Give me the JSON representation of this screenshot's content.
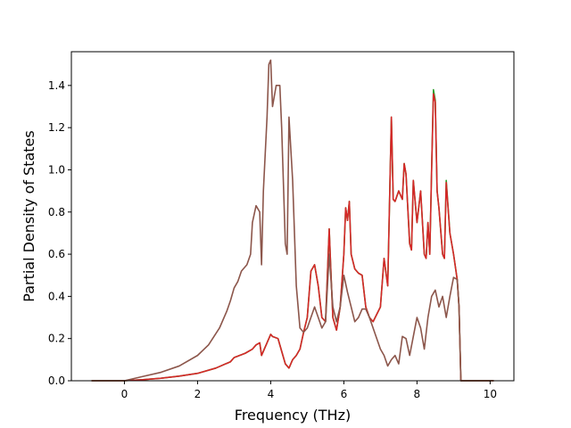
{
  "chart_data": {
    "type": "line",
    "title": "",
    "xlabel": "Frequency (THz)",
    "ylabel": "Partial Density of States",
    "xlim": [
      -1.45,
      10.65
    ],
    "ylim": [
      0,
      1.56
    ],
    "xticks": [
      0,
      2,
      4,
      6,
      8,
      10
    ],
    "yticks": [
      0.0,
      0.2,
      0.4,
      0.6,
      0.8,
      1.0,
      1.2,
      1.4
    ],
    "xtick_labels": [
      "0",
      "2",
      "4",
      "6",
      "8",
      "10"
    ],
    "ytick_labels": [
      "0.0",
      "0.2",
      "0.4",
      "0.6",
      "0.8",
      "1.0",
      "1.2",
      "1.4"
    ],
    "grid": false,
    "legend": "none",
    "series": [
      {
        "color": "#2ca02c",
        "x": [
          -0.9,
          0.0,
          0.5,
          1.0,
          1.5,
          2.0,
          2.5,
          2.9,
          3.0,
          3.3,
          3.5,
          3.6,
          3.7,
          3.75,
          3.9,
          4.0,
          4.05,
          4.2,
          4.3,
          4.4,
          4.5,
          4.6,
          4.7,
          4.8,
          4.9,
          5.0,
          5.1,
          5.2,
          5.3,
          5.4,
          5.5,
          5.6,
          5.65,
          5.7,
          5.8,
          5.9,
          6.0,
          6.05,
          6.1,
          6.15,
          6.2,
          6.3,
          6.4,
          6.5,
          6.6,
          6.7,
          6.8,
          7.0,
          7.1,
          7.2,
          7.3,
          7.35,
          7.4,
          7.5,
          7.6,
          7.65,
          7.7,
          7.8,
          7.85,
          7.9,
          8.0,
          8.1,
          8.2,
          8.25,
          8.3,
          8.35,
          8.4,
          8.45,
          8.5,
          8.55,
          8.6,
          8.7,
          8.75,
          8.8,
          8.9,
          9.0,
          9.1,
          9.15,
          9.2,
          9.25,
          10.1
        ],
        "y": [
          0.0,
          0.0,
          0.005,
          0.012,
          0.022,
          0.035,
          0.06,
          0.09,
          0.11,
          0.13,
          0.15,
          0.17,
          0.18,
          0.12,
          0.18,
          0.22,
          0.21,
          0.2,
          0.14,
          0.08,
          0.06,
          0.1,
          0.12,
          0.15,
          0.23,
          0.3,
          0.52,
          0.55,
          0.45,
          0.3,
          0.28,
          0.72,
          0.5,
          0.3,
          0.24,
          0.35,
          0.6,
          0.82,
          0.76,
          0.85,
          0.6,
          0.53,
          0.51,
          0.5,
          0.35,
          0.3,
          0.28,
          0.35,
          0.58,
          0.45,
          1.25,
          0.86,
          0.85,
          0.9,
          0.86,
          1.03,
          0.98,
          0.65,
          0.62,
          0.95,
          0.75,
          0.9,
          0.6,
          0.58,
          0.75,
          0.6,
          1.0,
          1.38,
          1.33,
          0.9,
          0.82,
          0.6,
          0.58,
          0.95,
          0.7,
          0.6,
          0.48,
          0.35,
          0.0,
          0.0,
          0.0
        ]
      },
      {
        "color": "#d62728",
        "x": [
          -0.9,
          0.0,
          0.5,
          1.0,
          1.5,
          2.0,
          2.5,
          2.9,
          3.0,
          3.3,
          3.5,
          3.6,
          3.7,
          3.75,
          3.9,
          4.0,
          4.05,
          4.2,
          4.3,
          4.4,
          4.5,
          4.6,
          4.7,
          4.8,
          4.9,
          5.0,
          5.1,
          5.2,
          5.3,
          5.4,
          5.5,
          5.6,
          5.65,
          5.7,
          5.8,
          5.9,
          6.0,
          6.05,
          6.1,
          6.15,
          6.2,
          6.3,
          6.4,
          6.5,
          6.6,
          6.7,
          6.8,
          7.0,
          7.1,
          7.2,
          7.3,
          7.35,
          7.4,
          7.5,
          7.6,
          7.65,
          7.7,
          7.8,
          7.85,
          7.9,
          8.0,
          8.1,
          8.2,
          8.25,
          8.3,
          8.35,
          8.4,
          8.45,
          8.5,
          8.55,
          8.6,
          8.7,
          8.75,
          8.8,
          8.9,
          9.0,
          9.1,
          9.15,
          9.2,
          9.25,
          10.1
        ],
        "y": [
          0.0,
          0.0,
          0.005,
          0.012,
          0.022,
          0.035,
          0.06,
          0.09,
          0.11,
          0.13,
          0.15,
          0.17,
          0.18,
          0.12,
          0.18,
          0.22,
          0.21,
          0.2,
          0.14,
          0.08,
          0.06,
          0.1,
          0.12,
          0.15,
          0.23,
          0.3,
          0.52,
          0.55,
          0.45,
          0.3,
          0.28,
          0.72,
          0.5,
          0.3,
          0.24,
          0.35,
          0.6,
          0.82,
          0.76,
          0.85,
          0.6,
          0.53,
          0.51,
          0.5,
          0.35,
          0.3,
          0.28,
          0.35,
          0.58,
          0.45,
          1.25,
          0.86,
          0.85,
          0.9,
          0.86,
          1.03,
          0.98,
          0.65,
          0.62,
          0.95,
          0.75,
          0.9,
          0.6,
          0.58,
          0.75,
          0.6,
          1.0,
          1.36,
          1.32,
          0.9,
          0.82,
          0.6,
          0.58,
          0.94,
          0.7,
          0.6,
          0.48,
          0.35,
          0.0,
          0.0,
          0.0
        ]
      },
      {
        "color": "#8c564b",
        "x": [
          -0.9,
          0.0,
          0.5,
          1.0,
          1.5,
          2.0,
          2.3,
          2.6,
          2.8,
          2.9,
          3.0,
          3.1,
          3.2,
          3.35,
          3.45,
          3.5,
          3.6,
          3.7,
          3.75,
          3.8,
          3.9,
          3.95,
          4.0,
          4.05,
          4.15,
          4.25,
          4.3,
          4.4,
          4.45,
          4.5,
          4.6,
          4.7,
          4.8,
          4.9,
          5.0,
          5.1,
          5.2,
          5.3,
          5.4,
          5.5,
          5.6,
          5.7,
          5.8,
          5.9,
          6.0,
          6.1,
          6.2,
          6.3,
          6.4,
          6.5,
          6.6,
          6.7,
          6.8,
          7.0,
          7.1,
          7.2,
          7.3,
          7.4,
          7.5,
          7.6,
          7.7,
          7.8,
          7.9,
          8.0,
          8.1,
          8.2,
          8.3,
          8.4,
          8.5,
          8.6,
          8.7,
          8.8,
          8.9,
          9.0,
          9.1,
          9.15,
          9.2,
          9.25,
          10.1
        ],
        "y": [
          0.0,
          0.0,
          0.02,
          0.04,
          0.07,
          0.12,
          0.17,
          0.25,
          0.33,
          0.38,
          0.44,
          0.47,
          0.52,
          0.55,
          0.6,
          0.75,
          0.83,
          0.8,
          0.55,
          0.9,
          1.25,
          1.5,
          1.52,
          1.3,
          1.4,
          1.4,
          1.2,
          0.65,
          0.6,
          1.25,
          0.95,
          0.45,
          0.25,
          0.23,
          0.25,
          0.3,
          0.35,
          0.3,
          0.25,
          0.28,
          0.6,
          0.35,
          0.28,
          0.35,
          0.5,
          0.42,
          0.35,
          0.28,
          0.3,
          0.34,
          0.34,
          0.3,
          0.25,
          0.15,
          0.12,
          0.07,
          0.1,
          0.12,
          0.08,
          0.21,
          0.2,
          0.12,
          0.21,
          0.3,
          0.25,
          0.15,
          0.3,
          0.4,
          0.43,
          0.35,
          0.4,
          0.3,
          0.4,
          0.49,
          0.48,
          0.35,
          0.0,
          0.0,
          0.0
        ]
      }
    ]
  }
}
